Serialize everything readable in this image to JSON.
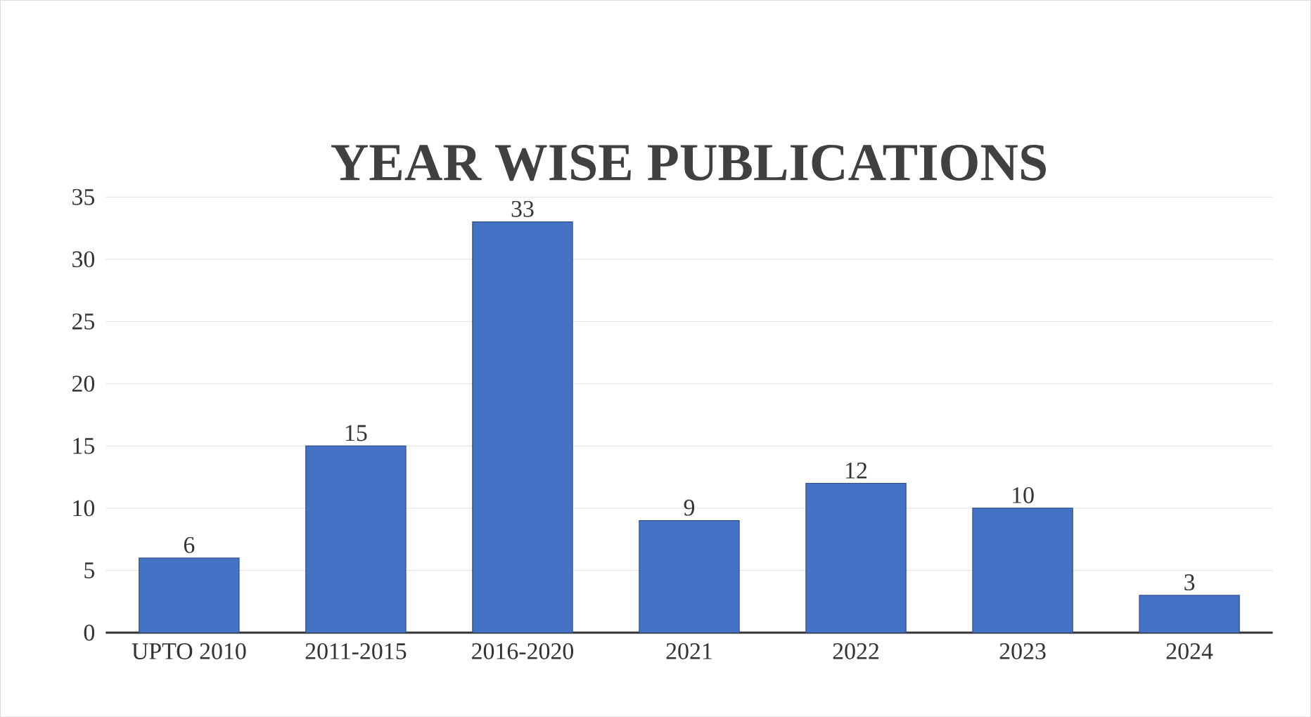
{
  "chart_data": {
    "type": "bar",
    "title": "YEAR WISE PUBLICATIONS",
    "categories": [
      "UPTO 2010",
      "2011-2015",
      "2016-2020",
      "2021",
      "2022",
      "2023",
      "2024"
    ],
    "values": [
      6,
      15,
      33,
      9,
      12,
      10,
      3
    ],
    "color": "#4472c4",
    "ylim": [
      0,
      35
    ],
    "yticks": [
      0,
      5,
      10,
      15,
      20,
      25,
      30,
      35
    ],
    "grid": "y",
    "data_labels": true
  }
}
